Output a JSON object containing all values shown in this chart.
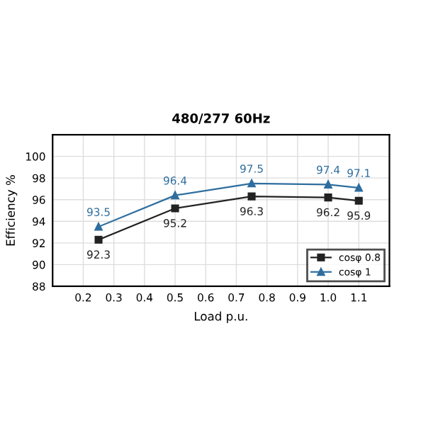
{
  "chart_data": {
    "type": "line",
    "title": "480/277 60Hz",
    "xlabel": "Load p.u.",
    "ylabel": "Efficiency %",
    "x": [
      0.25,
      0.5,
      0.75,
      1.0,
      1.1
    ],
    "series": [
      {
        "name": "cosφ 0.8",
        "color": "#222222",
        "marker": "square",
        "values": [
          92.3,
          95.2,
          96.3,
          96.2,
          95.9
        ]
      },
      {
        "name": "cosφ 1",
        "color": "#2e6e9e",
        "marker": "triangle",
        "values": [
          93.5,
          96.4,
          97.5,
          97.4,
          97.1
        ]
      }
    ],
    "xlim": [
      0.1,
      1.2
    ],
    "xticks": [
      0.2,
      0.3,
      0.4,
      0.5,
      0.6,
      0.7,
      0.8,
      0.9,
      {
        "value": 1.0,
        "label": "1.0"
      },
      1.1
    ],
    "ylim": [
      88,
      102
    ],
    "yticks": [
      88,
      90,
      92,
      94,
      96,
      98,
      100
    ],
    "grid": true,
    "legend": "bottom right",
    "data_labels": true
  }
}
